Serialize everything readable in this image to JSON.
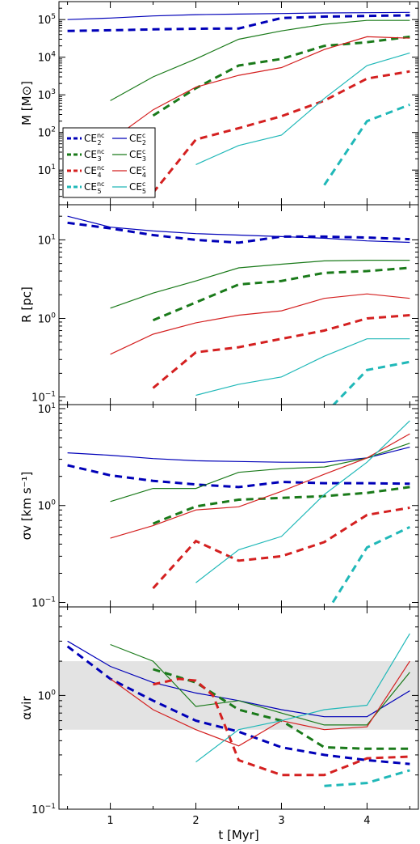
{
  "chart_data": {
    "type": "line",
    "shared_x": {
      "label": "t [Myr]",
      "range": [
        0.4,
        4.6
      ],
      "ticks": [
        1,
        2,
        3,
        4
      ]
    },
    "colors": {
      "CE2": "#0000b8",
      "CE3": "#1a7a1a",
      "CE4": "#d42020",
      "CE5": "#20b8b8",
      "band": "#e3e3e3"
    },
    "legend": {
      "placement": "left",
      "entries": [
        {
          "base": "CE",
          "sub": "2",
          "sup": "nc",
          "color": "CE2",
          "dashed": true
        },
        {
          "base": "CE",
          "sub": "2",
          "sup": "c",
          "color": "CE2",
          "dashed": false
        },
        {
          "base": "CE",
          "sub": "3",
          "sup": "nc",
          "color": "CE3",
          "dashed": true
        },
        {
          "base": "CE",
          "sub": "3",
          "sup": "c",
          "color": "CE3",
          "dashed": false
        },
        {
          "base": "CE",
          "sub": "4",
          "sup": "nc",
          "color": "CE4",
          "dashed": true
        },
        {
          "base": "CE",
          "sub": "4",
          "sup": "c",
          "color": "CE4",
          "dashed": false
        },
        {
          "base": "CE",
          "sub": "5",
          "sup": "nc",
          "color": "CE5",
          "dashed": true
        },
        {
          "base": "CE",
          "sub": "5",
          "sup": "c",
          "color": "CE5",
          "dashed": false
        }
      ]
    },
    "panels": [
      {
        "id": "mass",
        "ylabel": "M [M⊙]",
        "yscale": "log",
        "ylim": [
          1.2,
          300000
        ],
        "yticks": [
          {
            "v": 10,
            "mant": "10",
            "exp": "1"
          },
          {
            "v": 100,
            "mant": "10",
            "exp": "2"
          },
          {
            "v": 1000,
            "mant": "10",
            "exp": "3"
          },
          {
            "v": 10000,
            "mant": "10",
            "exp": "4"
          },
          {
            "v": 100000,
            "mant": "10",
            "exp": "5"
          }
        ],
        "series": [
          {
            "color": "CE2",
            "dashed": false,
            "x": [
              0.5,
              1,
              1.5,
              2,
              2.5,
              3,
              3.5,
              4,
              4.5
            ],
            "y": [
              100000,
              110000,
              125000,
              135000,
              140000,
              145000,
              150000,
              152000,
              155000
            ]
          },
          {
            "color": "CE2",
            "dashed": true,
            "x": [
              0.5,
              1,
              1.5,
              2,
              2.5,
              3,
              3.5,
              4,
              4.5
            ],
            "y": [
              50000,
              52000,
              55000,
              57000,
              58000,
              110000,
              120000,
              125000,
              130000
            ]
          },
          {
            "color": "CE3",
            "dashed": false,
            "x": [
              1,
              1.5,
              2,
              2.5,
              3,
              3.5,
              4,
              4.5
            ],
            "y": [
              700,
              3000,
              9000,
              30000,
              50000,
              75000,
              95000,
              95000
            ]
          },
          {
            "color": "CE3",
            "dashed": true,
            "x": [
              1.5,
              2,
              2.5,
              3,
              3.5,
              4,
              4.5
            ],
            "y": [
              280,
              1500,
              6000,
              9000,
              20000,
              25000,
              35000
            ]
          },
          {
            "color": "CE4",
            "dashed": false,
            "x": [
              1,
              1.5,
              2,
              2.5,
              3,
              3.5,
              4,
              4.5
            ],
            "y": [
              60,
              400,
              1600,
              3300,
              5300,
              16000,
              35000,
              32000
            ]
          },
          {
            "color": "CE4",
            "dashed": true,
            "x": [
              1.5,
              2,
              2.5,
              3,
              3.5,
              4,
              4.5
            ],
            "y": [
              2.5,
              65,
              130,
              270,
              700,
              2700,
              4200
            ]
          },
          {
            "color": "CE5",
            "dashed": false,
            "x": [
              2,
              2.5,
              3,
              3.5,
              4,
              4.5
            ],
            "y": [
              14,
              45,
              85,
              800,
              6000,
              13000
            ]
          },
          {
            "color": "CE5",
            "dashed": true,
            "x": [
              3.5,
              4,
              4.5
            ],
            "y": [
              4,
              200,
              550
            ]
          }
        ]
      },
      {
        "id": "radius",
        "ylabel": "R [pc]",
        "yscale": "log",
        "ylim": [
          0.08,
          28
        ],
        "yticks": [
          {
            "v": 0.1,
            "mant": "10",
            "exp": "−1"
          },
          {
            "v": 1,
            "mant": "10",
            "exp": "0"
          },
          {
            "v": 10,
            "mant": "10",
            "exp": "1"
          }
        ],
        "series": [
          {
            "color": "CE2",
            "dashed": false,
            "x": [
              0.5,
              1,
              1.5,
              2,
              2.5,
              3,
              3.5,
              4,
              4.5
            ],
            "y": [
              20,
              14.5,
              13,
              12,
              11.5,
              11,
              10.5,
              9.7,
              9.3
            ]
          },
          {
            "color": "CE2",
            "dashed": true,
            "x": [
              0.5,
              1,
              1.5,
              2,
              2.5,
              3,
              3.5,
              4,
              4.5
            ],
            "y": [
              16.5,
              14,
              11.5,
              10,
              9.2,
              11,
              11,
              10.7,
              10.2
            ]
          },
          {
            "color": "CE3",
            "dashed": false,
            "x": [
              1,
              1.5,
              2,
              2.5,
              3,
              3.5,
              4,
              4.5
            ],
            "y": [
              1.35,
              2.1,
              3,
              4.4,
              4.9,
              5.4,
              5.5,
              5.5
            ]
          },
          {
            "color": "CE3",
            "dashed": true,
            "x": [
              1.5,
              2,
              2.5,
              3,
              3.5,
              4,
              4.5
            ],
            "y": [
              0.95,
              1.6,
              2.7,
              3,
              3.8,
              4,
              4.4
            ]
          },
          {
            "color": "CE4",
            "dashed": false,
            "x": [
              1,
              1.5,
              2,
              2.5,
              3,
              3.5,
              4,
              4.5
            ],
            "y": [
              0.35,
              0.63,
              0.88,
              1.1,
              1.25,
              1.8,
              2.05,
              1.8
            ]
          },
          {
            "color": "CE4",
            "dashed": true,
            "x": [
              1.5,
              2,
              2.5,
              3,
              3.5,
              4,
              4.5
            ],
            "y": [
              0.13,
              0.37,
              0.43,
              0.55,
              0.7,
              1,
              1.1
            ]
          },
          {
            "color": "CE5",
            "dashed": false,
            "x": [
              2,
              2.5,
              3,
              3.5,
              4,
              4.5
            ],
            "y": [
              0.105,
              0.145,
              0.18,
              0.33,
              0.55,
              0.55
            ]
          },
          {
            "color": "CE5",
            "dashed": true,
            "x": [
              3.5,
              4,
              4.5
            ],
            "y": [
              0.06,
              0.22,
              0.28
            ]
          }
        ]
      },
      {
        "id": "sigma",
        "ylabel": "σv [km s⁻¹]",
        "yscale": "log",
        "ylim": [
          0.09,
          11
        ],
        "yticks": [
          {
            "v": 0.1,
            "mant": "10",
            "exp": "−1"
          },
          {
            "v": 1,
            "mant": "10",
            "exp": "0"
          },
          {
            "v": 10,
            "mant": "10",
            "exp": "1"
          }
        ],
        "series": [
          {
            "color": "CE2",
            "dashed": false,
            "x": [
              0.5,
              1,
              1.5,
              2,
              2.5,
              3,
              3.5,
              4,
              4.5
            ],
            "y": [
              3.5,
              3.3,
              3.05,
              2.9,
              2.85,
              2.8,
              2.8,
              3.1,
              4
            ]
          },
          {
            "color": "CE2",
            "dashed": true,
            "x": [
              0.5,
              1,
              1.5,
              2,
              2.5,
              3,
              3.5,
              4,
              4.5
            ],
            "y": [
              2.6,
              2.05,
              1.8,
              1.65,
              1.55,
              1.75,
              1.7,
              1.7,
              1.68
            ]
          },
          {
            "color": "CE3",
            "dashed": false,
            "x": [
              1,
              1.5,
              2,
              2.5,
              3,
              3.5,
              4,
              4.5
            ],
            "y": [
              1.1,
              1.5,
              1.5,
              2.2,
              2.4,
              2.5,
              3.1,
              4.4
            ]
          },
          {
            "color": "CE3",
            "dashed": true,
            "x": [
              1.5,
              2,
              2.5,
              3,
              3.5,
              4,
              4.5
            ],
            "y": [
              0.65,
              0.98,
              1.15,
              1.2,
              1.25,
              1.35,
              1.55
            ]
          },
          {
            "color": "CE4",
            "dashed": false,
            "x": [
              1,
              1.5,
              2,
              2.5,
              3,
              3.5,
              4,
              4.5
            ],
            "y": [
              0.46,
              0.62,
              0.9,
              0.97,
              1.4,
              2.1,
              3.1,
              5.5
            ]
          },
          {
            "color": "CE4",
            "dashed": true,
            "x": [
              1.5,
              2,
              2.5,
              3,
              3.5,
              4,
              4.5
            ],
            "y": [
              0.14,
              0.43,
              0.27,
              0.3,
              0.42,
              0.8,
              0.95
            ]
          },
          {
            "color": "CE5",
            "dashed": false,
            "x": [
              2,
              2.5,
              3,
              3.5,
              4,
              4.5
            ],
            "y": [
              0.16,
              0.35,
              0.48,
              1.3,
              2.8,
              7.5
            ]
          },
          {
            "color": "CE5",
            "dashed": true,
            "x": [
              3.6,
              4,
              4.5
            ],
            "y": [
              0.1,
              0.37,
              0.6
            ]
          }
        ]
      },
      {
        "id": "alpha",
        "ylabel": "αvir",
        "yscale": "log",
        "ylim": [
          0.1,
          6
        ],
        "band": [
          0.5,
          2
        ],
        "yticks": [
          {
            "v": 0.1,
            "mant": "10",
            "exp": "−1"
          },
          {
            "v": 1,
            "mant": "10",
            "exp": "0"
          }
        ],
        "series": [
          {
            "color": "CE2",
            "dashed": false,
            "x": [
              0.5,
              1,
              1.5,
              2,
              2.5,
              3,
              3.5,
              4,
              4.5
            ],
            "y": [
              3,
              1.8,
              1.3,
              1.05,
              0.9,
              0.75,
              0.65,
              0.65,
              1.1
            ]
          },
          {
            "color": "CE2",
            "dashed": true,
            "x": [
              0.5,
              1,
              1.5,
              2,
              2.5,
              3,
              3.5,
              4,
              4.5
            ],
            "y": [
              2.7,
              1.4,
              0.9,
              0.6,
              0.48,
              0.35,
              0.3,
              0.27,
              0.25
            ]
          },
          {
            "color": "CE3",
            "dashed": false,
            "x": [
              1,
              1.5,
              2,
              2.5,
              3,
              3.5,
              4,
              4.5
            ],
            "y": [
              2.8,
              2,
              0.8,
              0.9,
              0.7,
              0.55,
              0.55,
              1.6
            ]
          },
          {
            "color": "CE3",
            "dashed": true,
            "x": [
              1.5,
              2,
              2.5,
              3,
              3.5,
              4,
              4.5
            ],
            "y": [
              1.7,
              1.3,
              0.75,
              0.6,
              0.35,
              0.34,
              0.34
            ]
          },
          {
            "color": "CE4",
            "dashed": false,
            "x": [
              1,
              1.5,
              2,
              2.5,
              3,
              3.5,
              4,
              4.5
            ],
            "y": [
              1.4,
              0.75,
              0.5,
              0.36,
              0.6,
              0.5,
              0.53,
              2
            ]
          },
          {
            "color": "CE4",
            "dashed": true,
            "x": [
              1.5,
              1.8,
              2,
              2.2,
              2.5,
              3,
              3.5,
              4,
              4.5
            ],
            "y": [
              1.25,
              1.4,
              1.35,
              1.0,
              0.27,
              0.2,
              0.2,
              0.28,
              0.29
            ]
          },
          {
            "color": "CE5",
            "dashed": false,
            "x": [
              2,
              2.5,
              3,
              3.5,
              4,
              4.5
            ],
            "y": [
              0.26,
              0.5,
              0.6,
              0.75,
              0.82,
              3.5
            ]
          },
          {
            "color": "CE5",
            "dashed": true,
            "x": [
              3.5,
              4,
              4.5
            ],
            "y": [
              0.16,
              0.17,
              0.22
            ]
          }
        ]
      }
    ]
  }
}
